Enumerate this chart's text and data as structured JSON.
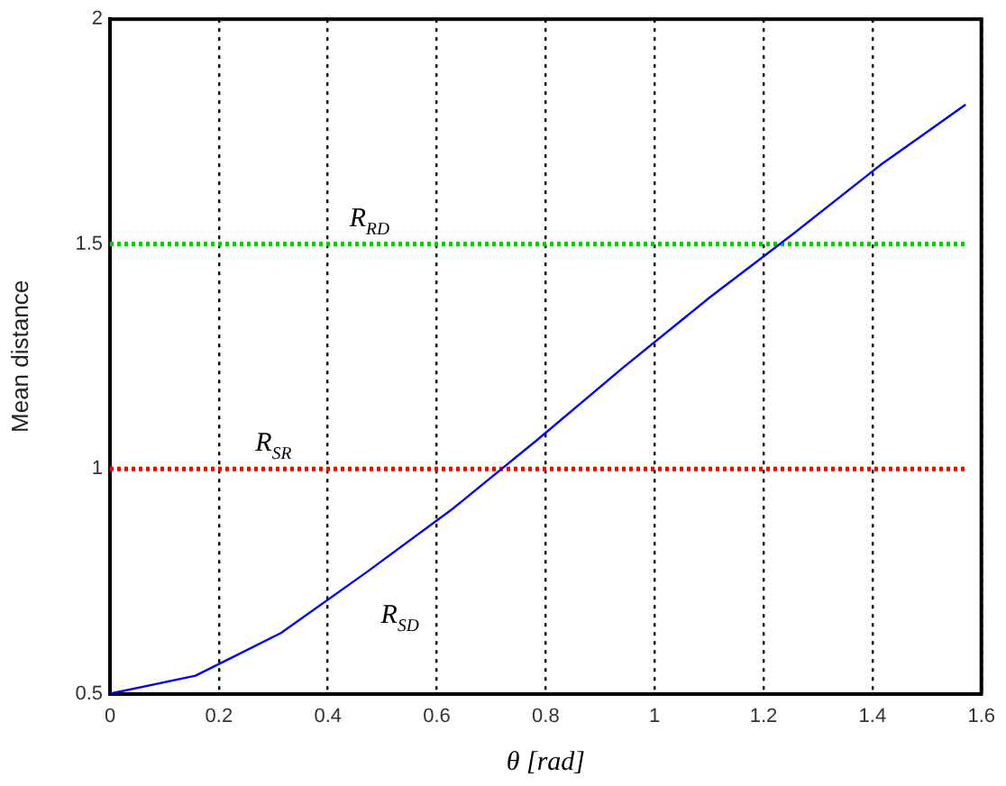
{
  "chart_data": {
    "type": "line",
    "xlabel": "θ [rad]",
    "ylabel": "Mean distance",
    "xlim": [
      0,
      1.6
    ],
    "xticks": [
      0,
      0.2,
      0.4,
      0.6,
      0.8,
      1,
      1.2,
      1.4,
      1.6
    ],
    "ylim": [
      0.5,
      2
    ],
    "yticks": [
      0.5,
      1,
      1.5,
      2
    ],
    "grid": "x",
    "marker": "none",
    "series": [
      {
        "name": "R$_{SD}$",
        "color": "#0000ff",
        "line_style": "solid",
        "x": [
          0,
          0.157,
          0.314,
          0.471,
          0.628,
          0.785,
          0.942,
          1.1,
          1.257,
          1.414,
          1.571
        ],
        "values": [
          0.5,
          0.54,
          0.635,
          0.77,
          0.91,
          1.065,
          1.225,
          1.38,
          1.525,
          1.675,
          1.81
        ]
      },
      {
        "name": "R$_{SR}$",
        "color": "#ff0000",
        "line_style": "dotted",
        "x": [
          0,
          1.571
        ],
        "values": [
          1,
          1
        ]
      },
      {
        "name": "R$_{RD}$",
        "color": "#00cc00",
        "line_style": "dotted",
        "x": [
          0,
          1.571
        ],
        "values": [
          1.5,
          1.5
        ]
      }
    ]
  }
}
